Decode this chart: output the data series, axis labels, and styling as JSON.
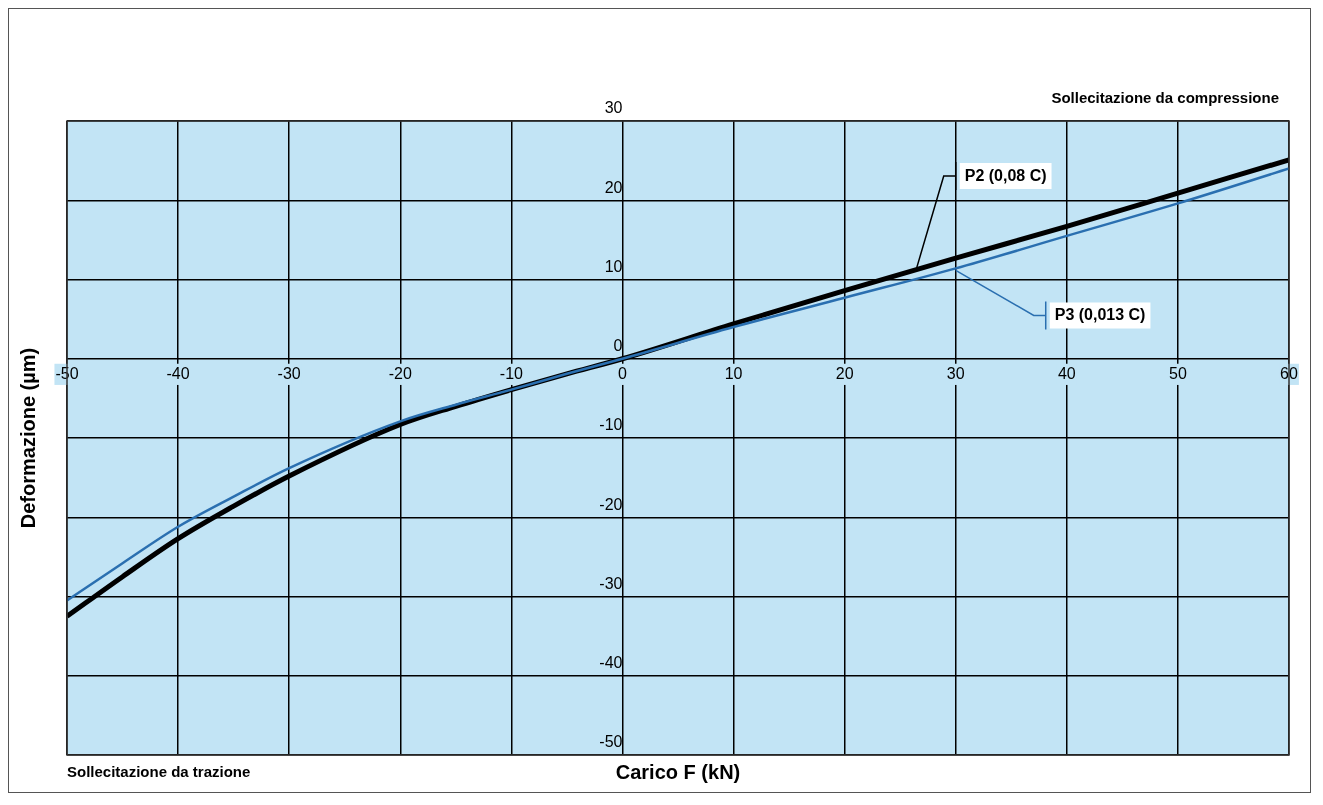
{
  "chart_data": {
    "type": "line",
    "xlabel": "Carico F (kN)",
    "ylabel": "Deformazione (µm)",
    "x": [
      -50,
      -45,
      -40,
      -35,
      -30,
      -20,
      -15,
      -10,
      -5,
      0,
      10,
      20,
      30,
      40,
      50,
      60
    ],
    "series": [
      {
        "name": "P2 (0,08 C)",
        "color": "#000000",
        "values": [
          -32.5,
          -27.5,
          -22.7,
          -18.6,
          -14.8,
          -8.3,
          -6,
          -3.9,
          -1.9,
          0,
          4.4,
          8.6,
          12.7,
          16.7,
          20.9,
          25.1
        ]
      },
      {
        "name": "P3 (0,013 C)",
        "color": "#2a6fb0",
        "values": [
          -30.5,
          -25.8,
          -21.2,
          -17.4,
          -13.8,
          -7.9,
          -5.8,
          -3.9,
          -1.9,
          0,
          4.0,
          7.7,
          11.4,
          15.5,
          19.6,
          24
        ]
      }
    ],
    "xlim": [
      -50,
      60
    ],
    "xticks": [
      -50,
      -40,
      -30,
      -20,
      -10,
      0,
      10,
      20,
      30,
      40,
      50,
      60
    ],
    "ylim": [
      -50,
      30
    ],
    "yticks": [
      -50,
      -40,
      -30,
      -20,
      -10,
      0,
      10,
      20,
      30
    ],
    "grid": true,
    "legend": "top right",
    "marker": "none",
    "line_style": "solid",
    "annotations": [
      "Sollecitazione da compressione",
      "Sollecitazione da trazione"
    ]
  }
}
